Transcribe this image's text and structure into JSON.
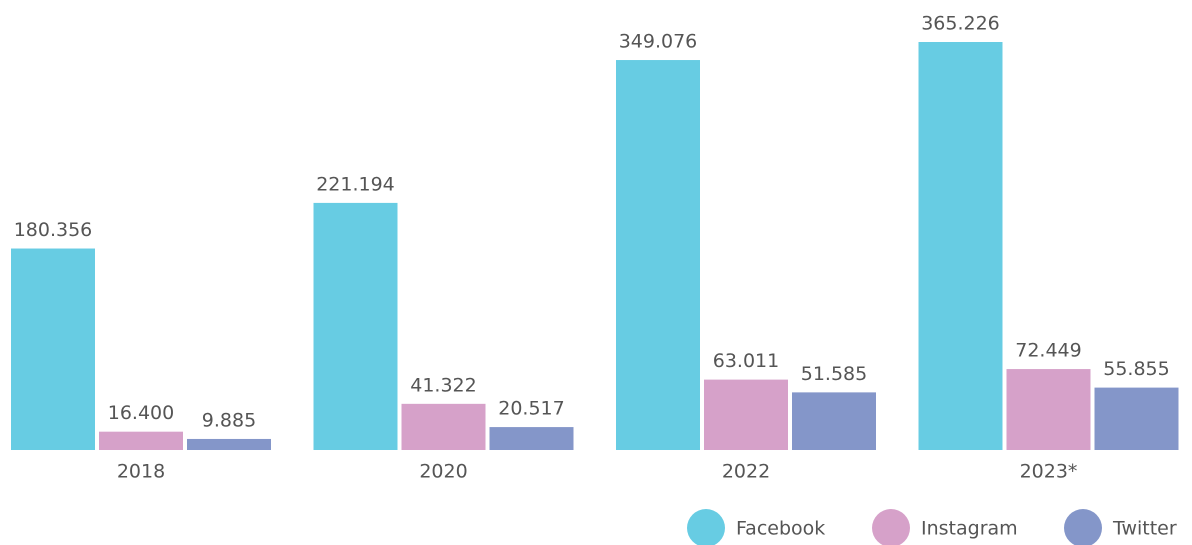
{
  "chart_data": {
    "type": "bar",
    "categories": [
      "2018",
      "2020",
      "2022",
      "2023*"
    ],
    "series": [
      {
        "name": "Facebook",
        "color": "#67cce3",
        "values": [
          180356,
          221194,
          349076,
          365226
        ],
        "value_labels": [
          "180.356",
          "221.194",
          "349.076",
          "365.226"
        ]
      },
      {
        "name": "Instagram",
        "color": "#d6a1c9",
        "values": [
          16400,
          41322,
          63011,
          72449
        ],
        "value_labels": [
          "16.400",
          "41.322",
          "63.011",
          "72.449"
        ]
      },
      {
        "name": "Twitter",
        "color": "#8496c9",
        "values": [
          9885,
          20517,
          51585,
          55855
        ],
        "value_labels": [
          "9.885",
          "20.517",
          "51.585",
          "55.855"
        ]
      }
    ],
    "legend": "bottom-right"
  }
}
